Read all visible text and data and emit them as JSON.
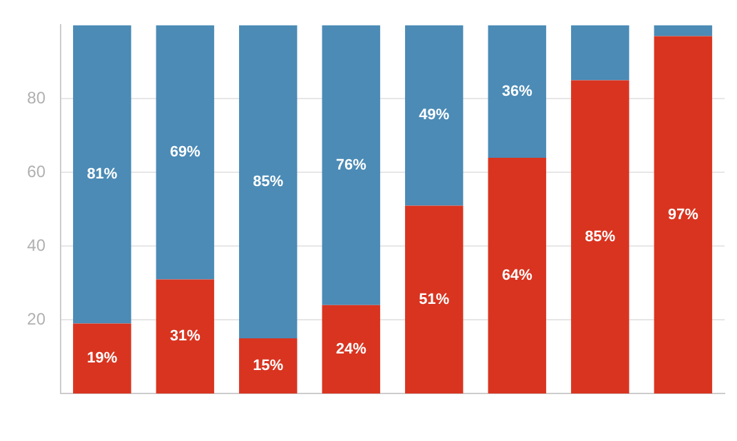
{
  "chart_data": {
    "type": "bar",
    "stacked": true,
    "categories": [
      null,
      null,
      null,
      null,
      null,
      null,
      null,
      null
    ],
    "series": [
      {
        "color": "#d93420",
        "values": [
          19,
          31,
          15,
          24,
          51,
          64,
          85,
          97
        ],
        "value_labels": [
          "19%",
          "31%",
          "15%",
          "24%",
          "51%",
          "64%",
          "85%",
          "97%"
        ]
      },
      {
        "color": "#4b8bb6",
        "values": [
          81,
          69,
          85,
          76,
          49,
          36,
          15,
          3
        ],
        "value_labels": [
          "81%",
          "69%",
          "85%",
          "76%",
          "49%",
          "36%",
          null,
          null
        ]
      }
    ],
    "ylim": [
      0,
      100
    ],
    "yticks": [
      20,
      40,
      60,
      80
    ],
    "grid": "y",
    "legend": false,
    "tick_labels": "y"
  }
}
